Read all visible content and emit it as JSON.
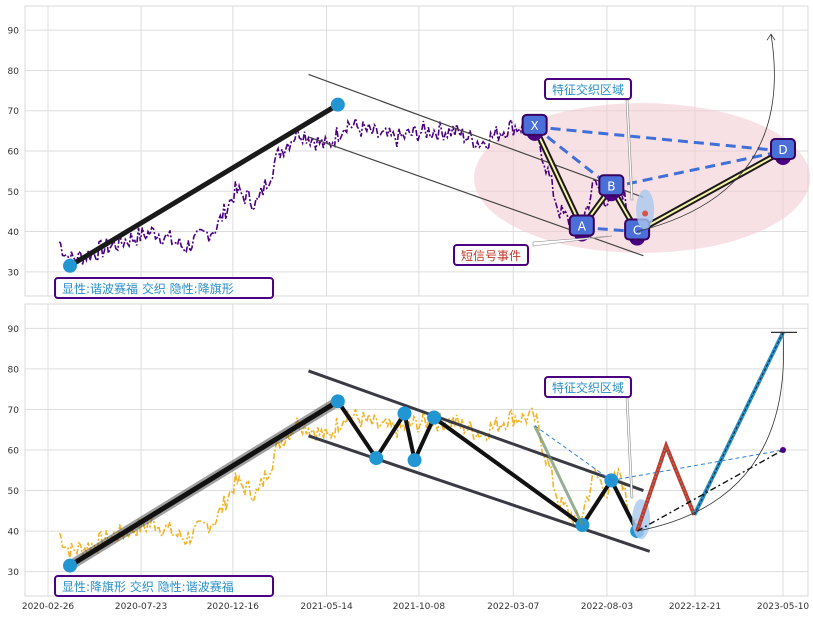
{
  "chart_data": [
    {
      "type": "line",
      "panel": "top",
      "ylim": [
        24,
        96
      ],
      "yticks": [
        30,
        40,
        50,
        60,
        70,
        80,
        90
      ],
      "xticks": [
        "2020-02-26",
        "2020-07-23",
        "2020-12-16",
        "2021-05-14",
        "2021-10-08",
        "2022-03-07",
        "2022-08-03",
        "2022-12-21",
        "2023-05-10"
      ],
      "grid": true,
      "price_color": "#4b0082",
      "price_anchors": [
        [
          "2020-03-15",
          37.5
        ],
        [
          "2020-04-01",
          33
        ],
        [
          "2020-05-15",
          35
        ],
        [
          "2020-07-01",
          38
        ],
        [
          "2020-08-15",
          40
        ],
        [
          "2020-10-01",
          36
        ],
        [
          "2020-11-20",
          41
        ],
        [
          "2020-12-20",
          50
        ],
        [
          "2021-01-25",
          47
        ],
        [
          "2021-03-01",
          60
        ],
        [
          "2021-04-01",
          65
        ],
        [
          "2021-05-15",
          61
        ],
        [
          "2021-06-15",
          67
        ],
        [
          "2021-08-01",
          64
        ],
        [
          "2021-09-01",
          63
        ],
        [
          "2021-10-15",
          65
        ],
        [
          "2021-12-01",
          65
        ],
        [
          "2022-01-15",
          62
        ],
        [
          "2022-03-01",
          66
        ],
        [
          "2022-04-10",
          66
        ],
        [
          "2022-05-20",
          45
        ],
        [
          "2022-06-20",
          40
        ],
        [
          "2022-07-15",
          52
        ],
        [
          "2022-08-03",
          48
        ],
        [
          "2022-08-25",
          52
        ],
        [
          "2022-09-10",
          42
        ],
        [
          "2022-09-20",
          41
        ]
      ],
      "harmonic_points": [
        {
          "label": "X",
          "date": "2022-04-10",
          "value": 66
        },
        {
          "label": "A",
          "date": "2022-06-24",
          "value": 41
        },
        {
          "label": "B",
          "date": "2022-08-10",
          "value": 51
        },
        {
          "label": "C",
          "date": "2022-09-20",
          "value": 40
        },
        {
          "label": "D",
          "date": "2023-05-10",
          "value": 60
        }
      ],
      "trend_line": {
        "from": [
          "2020-04-01",
          31.5
        ],
        "to": [
          "2021-06-01",
          71.5
        ]
      },
      "channel_upper": {
        "from": [
          "2021-05-14",
          79
        ],
        "to": [
          "2022-09-30",
          48.5
        ]
      },
      "channel_lower": {
        "from": [
          "2021-05-14",
          63.5
        ],
        "to": [
          "2022-09-30",
          34
        ]
      },
      "arrow_target": [
        "2023-05-10",
        89
      ],
      "annotations": {
        "region": "特征交织区域",
        "event": "短信号事件",
        "pattern": "显性:谐波赛福 交织 隐性:降旗形"
      }
    },
    {
      "type": "line",
      "panel": "bottom",
      "ylim": [
        24,
        96
      ],
      "yticks": [
        30,
        40,
        50,
        60,
        70,
        80,
        90
      ],
      "xticks": [
        "2020-02-26",
        "2020-07-23",
        "2020-12-16",
        "2021-05-14",
        "2021-10-08",
        "2022-03-07",
        "2022-08-03",
        "2022-12-21",
        "2023-05-10"
      ],
      "grid": true,
      "price_color": "#f0b429",
      "zigzag": [
        [
          "2020-04-01",
          31.5
        ],
        [
          "2021-06-01",
          72
        ],
        [
          "2021-08-01",
          58
        ],
        [
          "2021-09-15",
          69
        ],
        [
          "2021-10-01",
          57.5
        ],
        [
          "2021-11-01",
          68
        ],
        [
          "2022-06-25",
          41.5
        ],
        [
          "2022-08-10",
          52.5
        ],
        [
          "2022-09-20",
          40
        ]
      ],
      "channel_upper": {
        "from": [
          "2021-05-14",
          79.5
        ],
        "to": [
          "2022-09-30",
          50
        ]
      },
      "channel_lower": {
        "from": [
          "2021-05-14",
          63.5
        ],
        "to": [
          "2022-10-10",
          35
        ]
      },
      "forecast": {
        "red": [
          [
            "2022-09-20",
            40
          ],
          [
            "2022-11-05",
            61
          ],
          [
            "2022-12-20",
            44
          ]
        ],
        "blue": [
          [
            "2022-12-20",
            44
          ],
          [
            "2023-05-10",
            89
          ]
        ],
        "black_dashdot": [
          [
            "2022-09-20",
            40
          ],
          [
            "2023-05-10",
            60
          ]
        ]
      },
      "target_value": 89,
      "annotations": {
        "region": "特征交织区域",
        "pattern": "显性:降旗形 交织 隐性:谐波赛福"
      }
    }
  ]
}
